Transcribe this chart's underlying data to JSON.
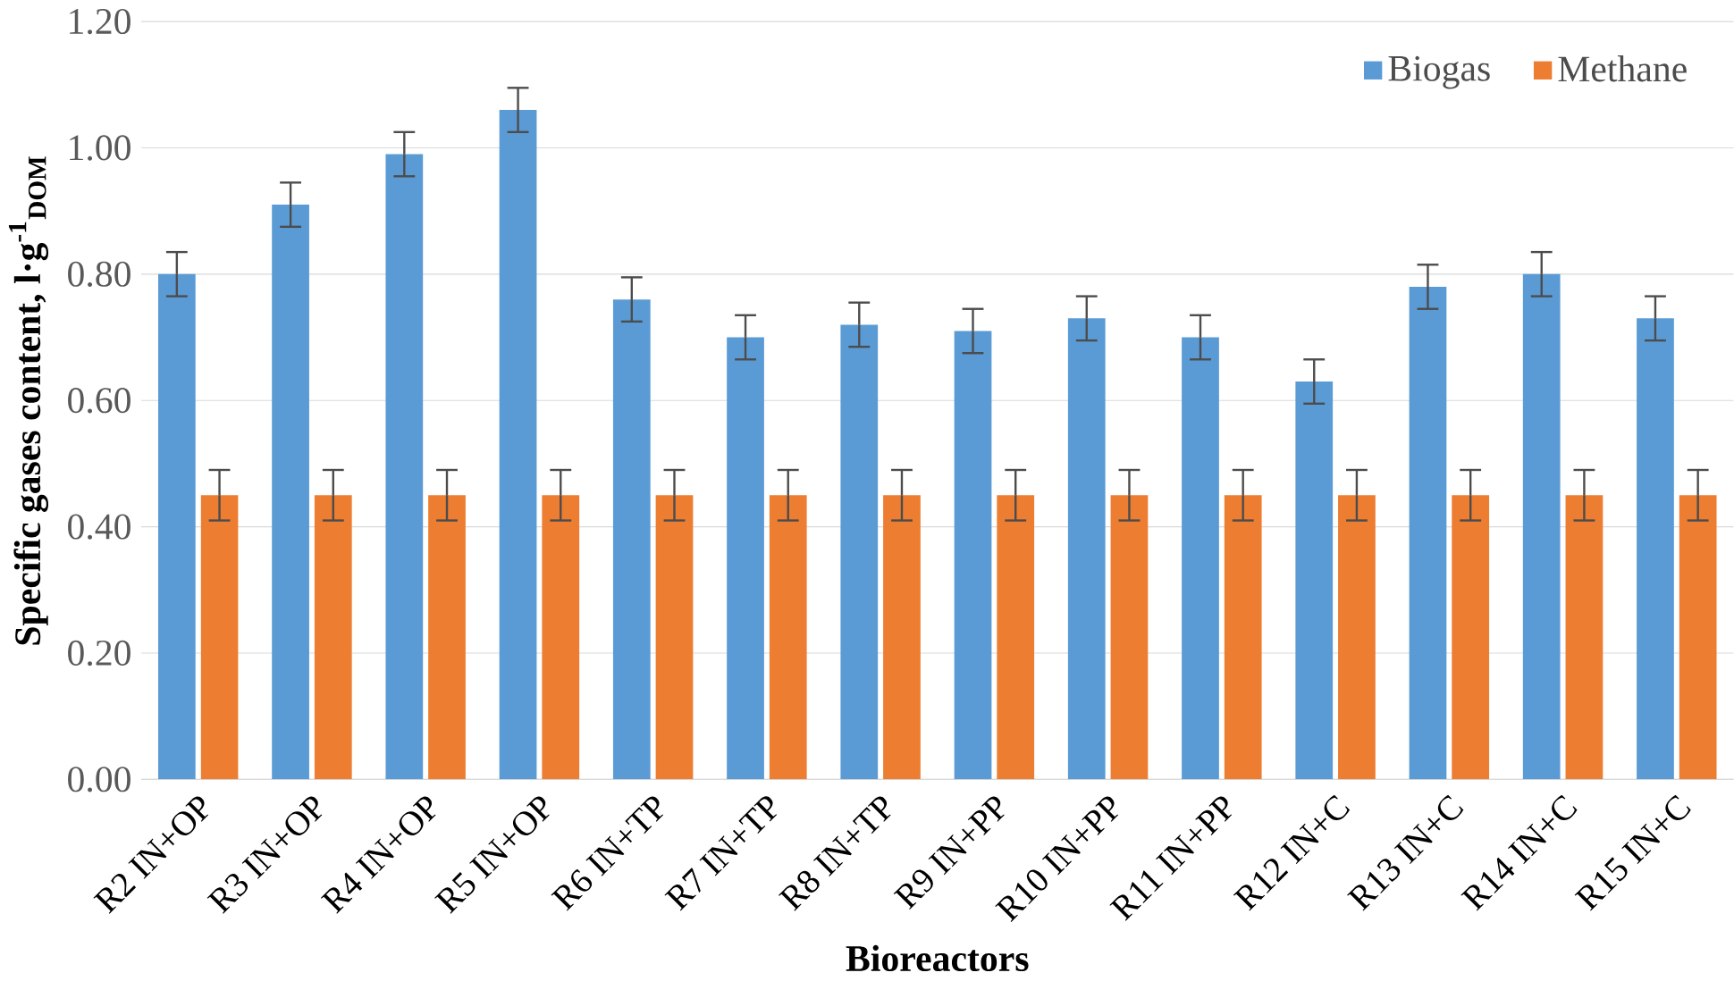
{
  "chart_data": {
    "type": "bar",
    "xlabel": "Bioreactors",
    "ylabel": "Specific gases content, l·g$^{-1}$$_{DOM}$",
    "categories": [
      "R2 IN+OP",
      "R3 IN+OP",
      "R4 IN+OP",
      "R5 IN+OP",
      "R6 IN+TP",
      "R7 IN+TP",
      "R8 IN+TP",
      "R9 IN+PP",
      "R10 IN+PP",
      "R11 IN+PP",
      "R12 IN+C",
      "R13 IN+C",
      "R14 IN+C",
      "R15 IN+C"
    ],
    "series": [
      {
        "name": "Biogas",
        "color": "#5b9bd5",
        "values": [
          0.8,
          0.91,
          0.99,
          1.06,
          0.76,
          0.7,
          0.72,
          0.71,
          0.73,
          0.7,
          0.63,
          0.78,
          0.8,
          0.73
        ],
        "errors": [
          0.035,
          0.035,
          0.035,
          0.035,
          0.035,
          0.035,
          0.035,
          0.035,
          0.035,
          0.035,
          0.035,
          0.035,
          0.035,
          0.035
        ]
      },
      {
        "name": "Methane",
        "color": "#ed7d31",
        "values": [
          0.45,
          0.45,
          0.45,
          0.45,
          0.45,
          0.45,
          0.45,
          0.45,
          0.45,
          0.45,
          0.45,
          0.45,
          0.45,
          0.45
        ],
        "errors": [
          0.04,
          0.04,
          0.04,
          0.04,
          0.04,
          0.04,
          0.04,
          0.04,
          0.04,
          0.04,
          0.04,
          0.04,
          0.04,
          0.04
        ]
      }
    ],
    "ylim": [
      0,
      1.2
    ],
    "yticks": [
      {
        "value": 0,
        "label": "0.00"
      },
      {
        "value": 0.2,
        "label": "0.20"
      },
      {
        "value": 0.4,
        "label": "0.40"
      },
      {
        "value": 0.6,
        "label": "0.60"
      },
      {
        "value": 0.8,
        "label": "0.80"
      },
      {
        "value": 1.0,
        "label": "1.00"
      },
      {
        "value": 1.2,
        "label": "1.20"
      }
    ],
    "grid": "y",
    "legend": "top right"
  }
}
